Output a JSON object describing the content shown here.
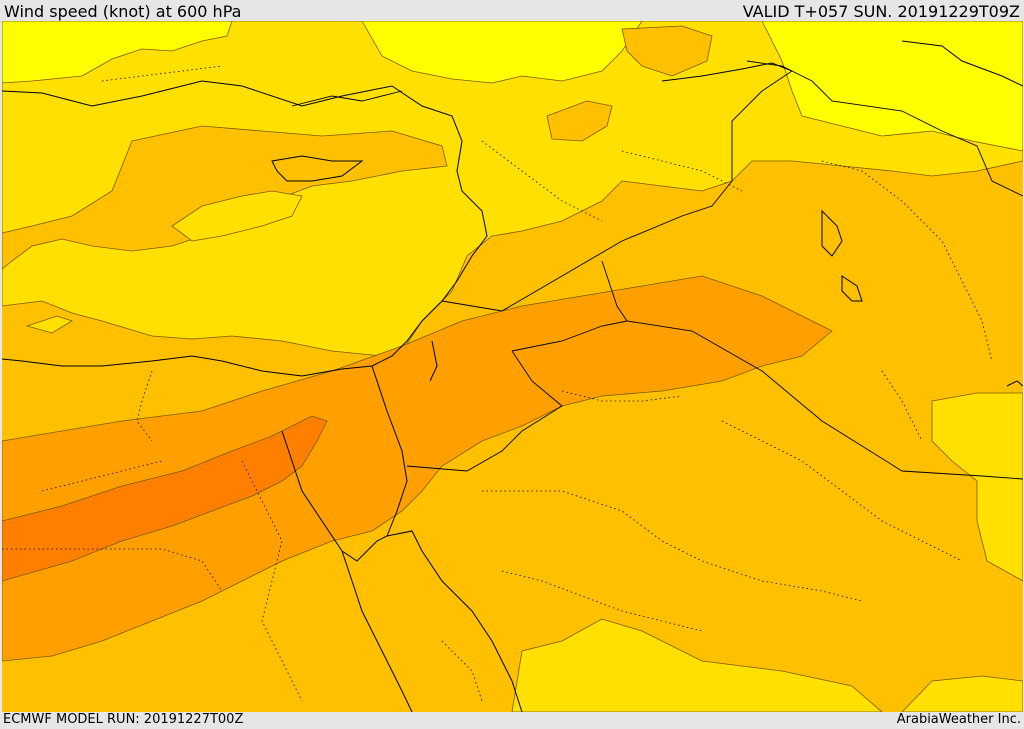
{
  "header": {
    "title": "Wind speed (knot) at 600 hPa",
    "valid": "VALID T+057 SUN. 20191229T09Z"
  },
  "footer": {
    "model_run": "ECMWF MODEL RUN: 20191227T00Z",
    "brand": "ArabiaWeather Inc."
  },
  "map": {
    "field": "wind-speed",
    "colors": {
      "band_yellow": "#ffff00",
      "band_light": "#ffe000",
      "band_base": "#ffc000",
      "band_orange": "#ffa000",
      "band_dark": "#ff8000",
      "contour": "#7a5a00",
      "boundary": "#000000"
    }
  }
}
